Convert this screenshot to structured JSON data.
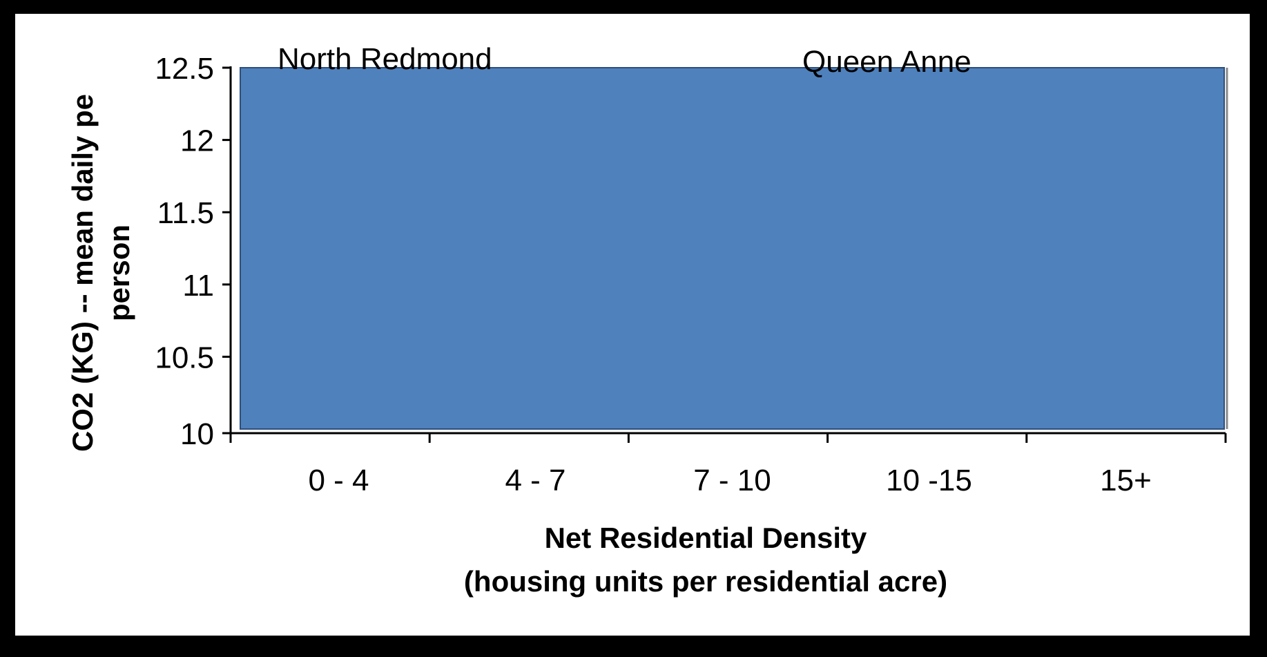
{
  "chart_data": {
    "type": "bar",
    "categories": [
      "0 - 4",
      "4 - 7",
      "7 - 10",
      "10 -15",
      "15+"
    ],
    "values": [
      12.5,
      12.5,
      12.5,
      12.5,
      12.5
    ],
    "ylim": [
      10,
      12.5
    ],
    "yticks": [
      10,
      10.5,
      11,
      11.5,
      12,
      12.5
    ],
    "ytick_labels": [
      "10",
      "10.5",
      "11",
      "11.5",
      "12",
      "12.5"
    ],
    "xlabel": [
      "Net Residential Density",
      "(housing units per residential acre)"
    ],
    "ylabel": [
      "CO2 (KG) -- mean daily pe",
      "person"
    ],
    "annotations": [
      "North Redmond",
      "Queen Anne"
    ],
    "grid": false,
    "colors": {
      "bar": "#4f81bd",
      "axis": "#000000"
    }
  }
}
